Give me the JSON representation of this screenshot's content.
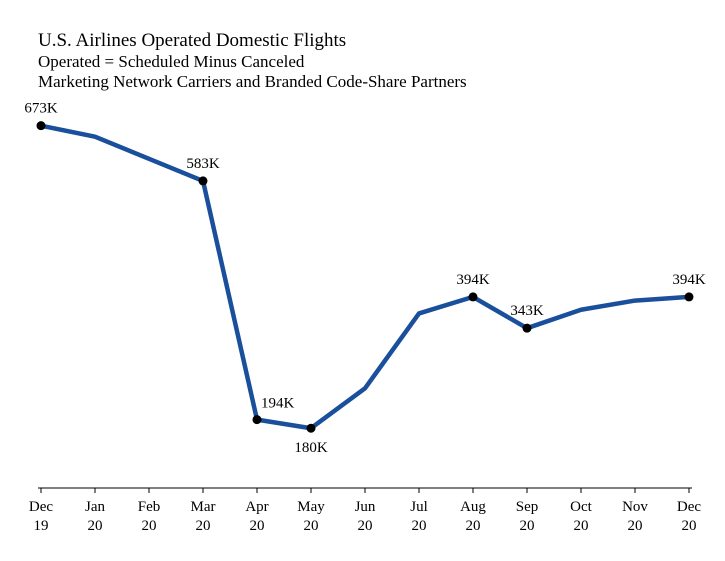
{
  "chart_data": {
    "type": "line",
    "title": "U.S. Airlines Operated Domestic Flights",
    "subtitles": [
      "Operated = Scheduled Minus Canceled",
      "Marketing Network Carriers and Branded Code-Share Partners"
    ],
    "xlabel": "",
    "ylabel": "",
    "categories": [
      [
        "Dec",
        "19"
      ],
      [
        "Jan",
        "20"
      ],
      [
        "Feb",
        "20"
      ],
      [
        "Mar",
        "20"
      ],
      [
        "Apr",
        "20"
      ],
      [
        "May",
        "20"
      ],
      [
        "Jun",
        "20"
      ],
      [
        "Jul",
        "20"
      ],
      [
        "Aug",
        "20"
      ],
      [
        "Sep",
        "20"
      ],
      [
        "Oct",
        "20"
      ],
      [
        "Nov",
        "20"
      ],
      [
        "Dec",
        "20"
      ]
    ],
    "series": [
      {
        "values": [
          673,
          655,
          619,
          583,
          194,
          180,
          245,
          367,
          394,
          343,
          373,
          388,
          394
        ],
        "unit": "K",
        "labeled_points": [
          {
            "index": 0,
            "label": "673K",
            "position": "above"
          },
          {
            "index": 3,
            "label": "583K",
            "position": "above"
          },
          {
            "index": 4,
            "label": "194K",
            "position": "above-right"
          },
          {
            "index": 5,
            "label": "180K",
            "position": "below"
          },
          {
            "index": 8,
            "label": "394K",
            "position": "above"
          },
          {
            "index": 9,
            "label": "343K",
            "position": "above"
          },
          {
            "index": 12,
            "label": "394K",
            "position": "above"
          }
        ]
      }
    ],
    "ylim": [
      50,
      780
    ],
    "grid": false,
    "y_axis_visible": false,
    "colors": {
      "line": "#1a4f9c",
      "marker": "#000000",
      "axis": "#000000"
    }
  }
}
